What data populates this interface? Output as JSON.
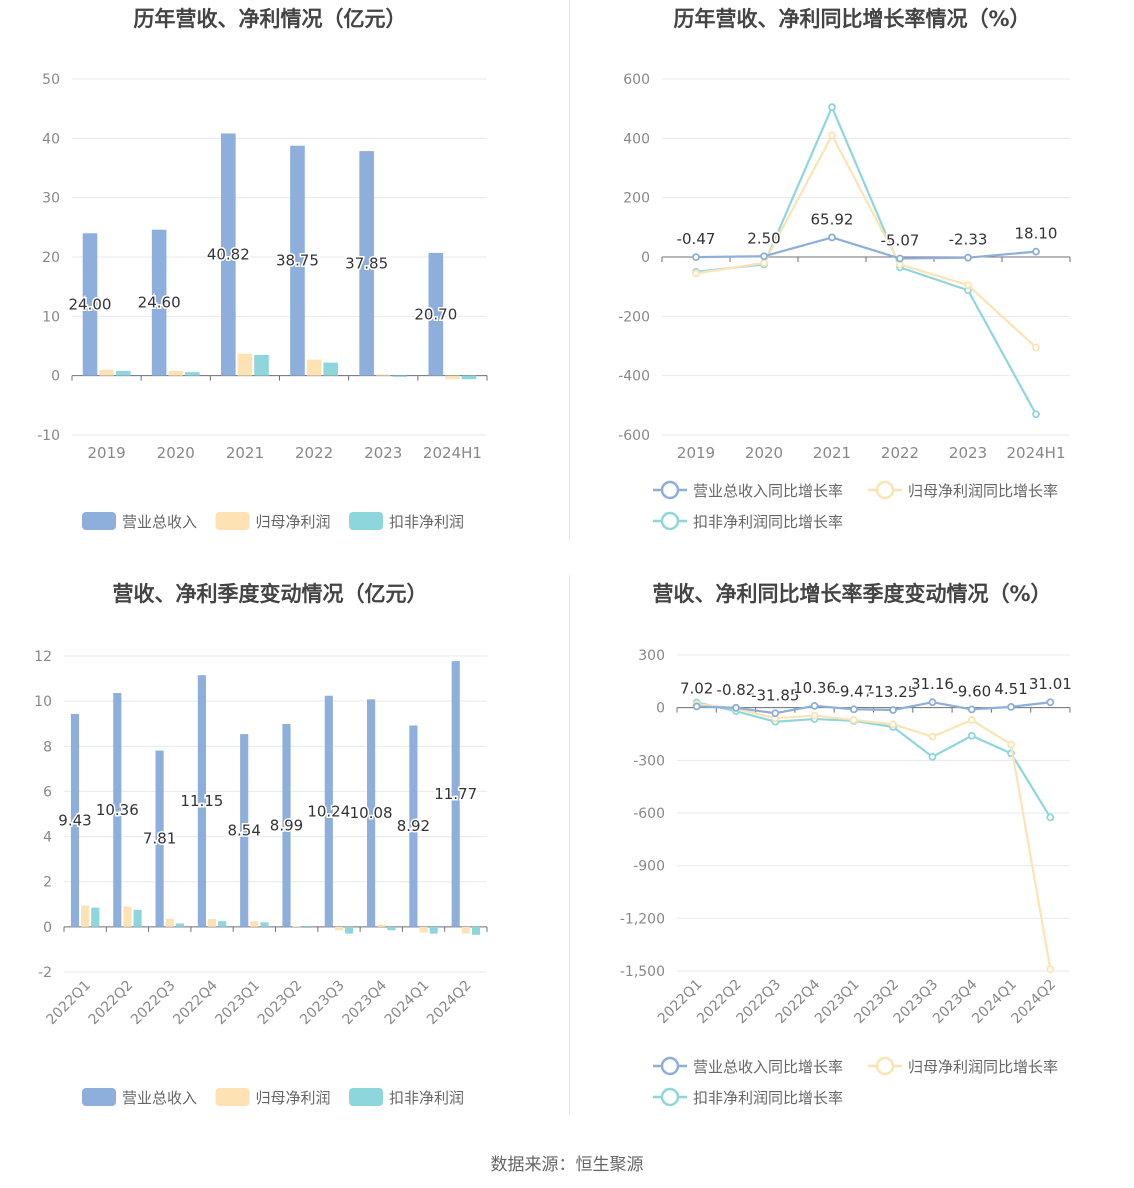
{
  "colors": {
    "revenue": "#8eaedb",
    "net_profit": "#fde3b3",
    "deducted_profit": "#8dd7dc",
    "grid": "#e6e9f2",
    "axis_text": "#888888",
    "title_text": "#444444",
    "label_text": "#333333"
  },
  "source": "数据来源：恒生聚源",
  "chart_data": [
    {
      "type": "bar",
      "title": "历年营收、净利情况（亿元）",
      "categories": [
        "2019",
        "2020",
        "2021",
        "2022",
        "2023",
        "2024H1"
      ],
      "ylim": [
        -10,
        50
      ],
      "yticks": [
        -10,
        0,
        10,
        20,
        30,
        40,
        50
      ],
      "legend_position": "bottom",
      "series": [
        {
          "name": "营业总收入",
          "values": [
            24.0,
            24.6,
            40.82,
            38.75,
            37.85,
            20.7
          ],
          "labels": [
            "24.00",
            "24.60",
            "40.82",
            "38.75",
            "37.85",
            "20.70"
          ]
        },
        {
          "name": "归母净利润",
          "values": [
            1.0,
            0.8,
            3.7,
            2.7,
            0.2,
            -0.6
          ]
        },
        {
          "name": "扣非净利润",
          "values": [
            0.8,
            0.6,
            3.5,
            2.2,
            -0.2,
            -0.6
          ]
        }
      ]
    },
    {
      "type": "line",
      "title": "历年营收、净利同比增长率情况（%）",
      "categories": [
        "2019",
        "2020",
        "2021",
        "2022",
        "2023",
        "2024H1"
      ],
      "ylim": [
        -600,
        600
      ],
      "yticks": [
        -600,
        -400,
        -200,
        0,
        200,
        400,
        600
      ],
      "ytick_labels": [
        "-600",
        "-400",
        "-200",
        "0",
        "200",
        "400",
        "600"
      ],
      "legend_position": "bottom",
      "series": [
        {
          "name": "营业总收入同比增长率",
          "values": [
            -0.47,
            2.5,
            65.92,
            -5.07,
            -2.33,
            18.1
          ],
          "labels": [
            "-0.47",
            "2.50",
            "65.92",
            "-5.07",
            "-2.33",
            "18.10"
          ]
        },
        {
          "name": "归母净利润同比增长率",
          "values": [
            -55,
            -20,
            410,
            -25,
            -95,
            -305
          ]
        },
        {
          "name": "扣非净利润同比增长率",
          "values": [
            -50,
            -25,
            505,
            -35,
            -112,
            -530
          ]
        }
      ]
    },
    {
      "type": "bar",
      "title": "营收、净利季度变动情况（亿元）",
      "categories": [
        "2022Q1",
        "2022Q2",
        "2022Q3",
        "2022Q4",
        "2023Q1",
        "2023Q2",
        "2023Q3",
        "2023Q4",
        "2024Q1",
        "2024Q2"
      ],
      "ylim": [
        -2,
        12
      ],
      "yticks": [
        -2,
        0,
        2,
        4,
        6,
        8,
        10,
        12
      ],
      "legend_position": "bottom",
      "series": [
        {
          "name": "营业总收入",
          "values": [
            9.43,
            10.36,
            7.81,
            11.15,
            8.54,
            8.99,
            10.24,
            10.08,
            8.92,
            11.77
          ],
          "labels": [
            "9.43",
            "10.36",
            "7.81",
            "11.15",
            "8.54",
            "8.99",
            "10.24",
            "10.08",
            "8.92",
            "11.77"
          ]
        },
        {
          "name": "归母净利润",
          "values": [
            0.95,
            0.9,
            0.35,
            0.35,
            0.25,
            0.02,
            -0.15,
            0.1,
            -0.25,
            -0.3
          ]
        },
        {
          "name": "扣非净利润",
          "values": [
            0.85,
            0.75,
            0.15,
            0.25,
            0.2,
            -0.05,
            -0.3,
            -0.15,
            -0.3,
            -0.35
          ]
        }
      ]
    },
    {
      "type": "line",
      "title": "营收、净利同比增长率季度变动情况（%）",
      "categories": [
        "2022Q1",
        "2022Q2",
        "2022Q3",
        "2022Q4",
        "2023Q1",
        "2023Q2",
        "2023Q3",
        "2023Q4",
        "2024Q1",
        "2024Q2"
      ],
      "ylim": [
        -1500,
        300
      ],
      "yticks": [
        -1500,
        -1200,
        -900,
        -600,
        -300,
        0,
        300
      ],
      "ytick_labels": [
        "-1,500",
        "-1,200",
        "-900",
        "-600",
        "-300",
        "0",
        "300"
      ],
      "legend_position": "bottom",
      "series": [
        {
          "name": "营业总收入同比增长率",
          "values": [
            7.02,
            -0.82,
            -31.85,
            10.36,
            -9.47,
            -13.25,
            31.16,
            -9.6,
            4.51,
            31.01
          ],
          "labels": [
            "7.02",
            "-0.82",
            "-31.85",
            "10.36",
            "-9.47",
            "-13.25",
            "31.16",
            "-9.60",
            "4.51",
            "31.01"
          ]
        },
        {
          "name": "归母净利润同比增长率",
          "values": [
            20,
            -5,
            -60,
            -45,
            -70,
            -95,
            -165,
            -70,
            -210,
            -1490
          ]
        },
        {
          "name": "扣非净利润同比增长率",
          "values": [
            30,
            -20,
            -80,
            -65,
            -75,
            -110,
            -280,
            -160,
            -260,
            -625
          ]
        }
      ]
    }
  ]
}
